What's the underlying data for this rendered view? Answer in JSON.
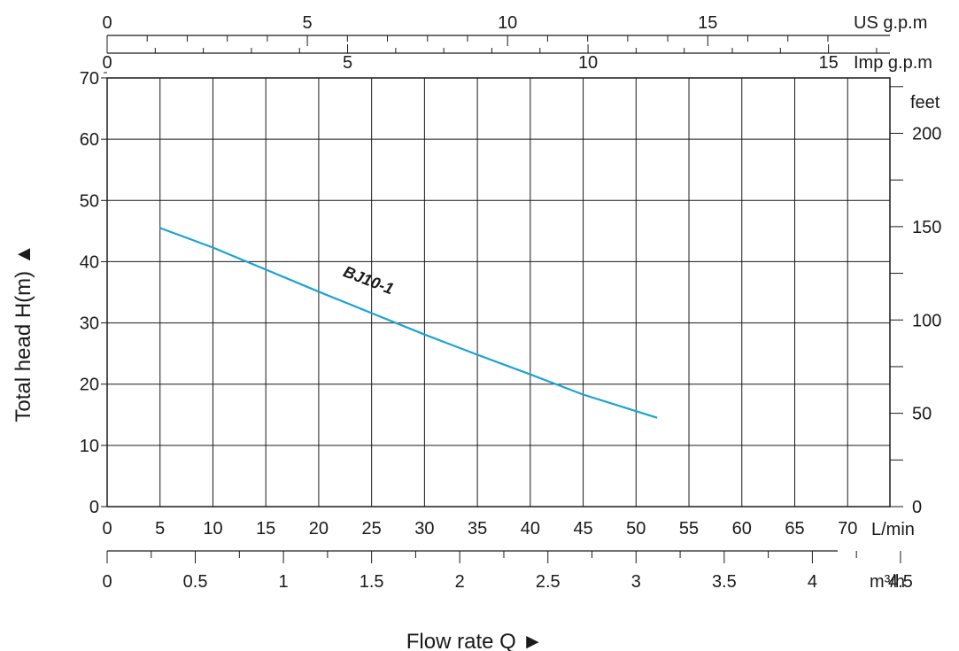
{
  "chart_data": {
    "type": "line",
    "x_axis": {
      "label": "Flow rate  Q ►",
      "unit": "L/min",
      "range": [
        0,
        74
      ],
      "ticks": [
        "0",
        "5",
        "10",
        "15",
        "20",
        "25",
        "30",
        "35",
        "40",
        "45",
        "50",
        "55",
        "60",
        "65",
        "70"
      ]
    },
    "x_axis_secondary_m3h": {
      "unit": "m³/h",
      "ticks": [
        "0",
        "0.5",
        "1",
        "1.5",
        "2",
        "2.5",
        "3",
        "3.5",
        "4",
        "4.5"
      ]
    },
    "x_axis_us_gpm": {
      "unit": "US g.p.m",
      "ticks": [
        "0",
        "5",
        "10",
        "15"
      ]
    },
    "x_axis_imp_gpm": {
      "unit": "Imp g.p.m",
      "ticks": [
        "0",
        "5",
        "10",
        "15"
      ]
    },
    "y_axis": {
      "label": "Total  head H(m) ▲",
      "unit": "m",
      "range": [
        0,
        70
      ],
      "ticks": [
        "0",
        "10",
        "20",
        "30",
        "40",
        "50",
        "60",
        "70"
      ]
    },
    "y_axis_feet": {
      "unit": "feet",
      "ticks": [
        "0",
        "50",
        "100",
        "150",
        "200"
      ]
    },
    "grid": true,
    "series": [
      {
        "name": "BJ10-1",
        "color": "#1ba3d3",
        "x": [
          5,
          10,
          15,
          20,
          25,
          30,
          35,
          40,
          45,
          52
        ],
        "y": [
          45.5,
          42.3,
          38.7,
          35.1,
          31.6,
          28.1,
          24.8,
          21.6,
          18.3,
          14.5
        ]
      }
    ]
  }
}
